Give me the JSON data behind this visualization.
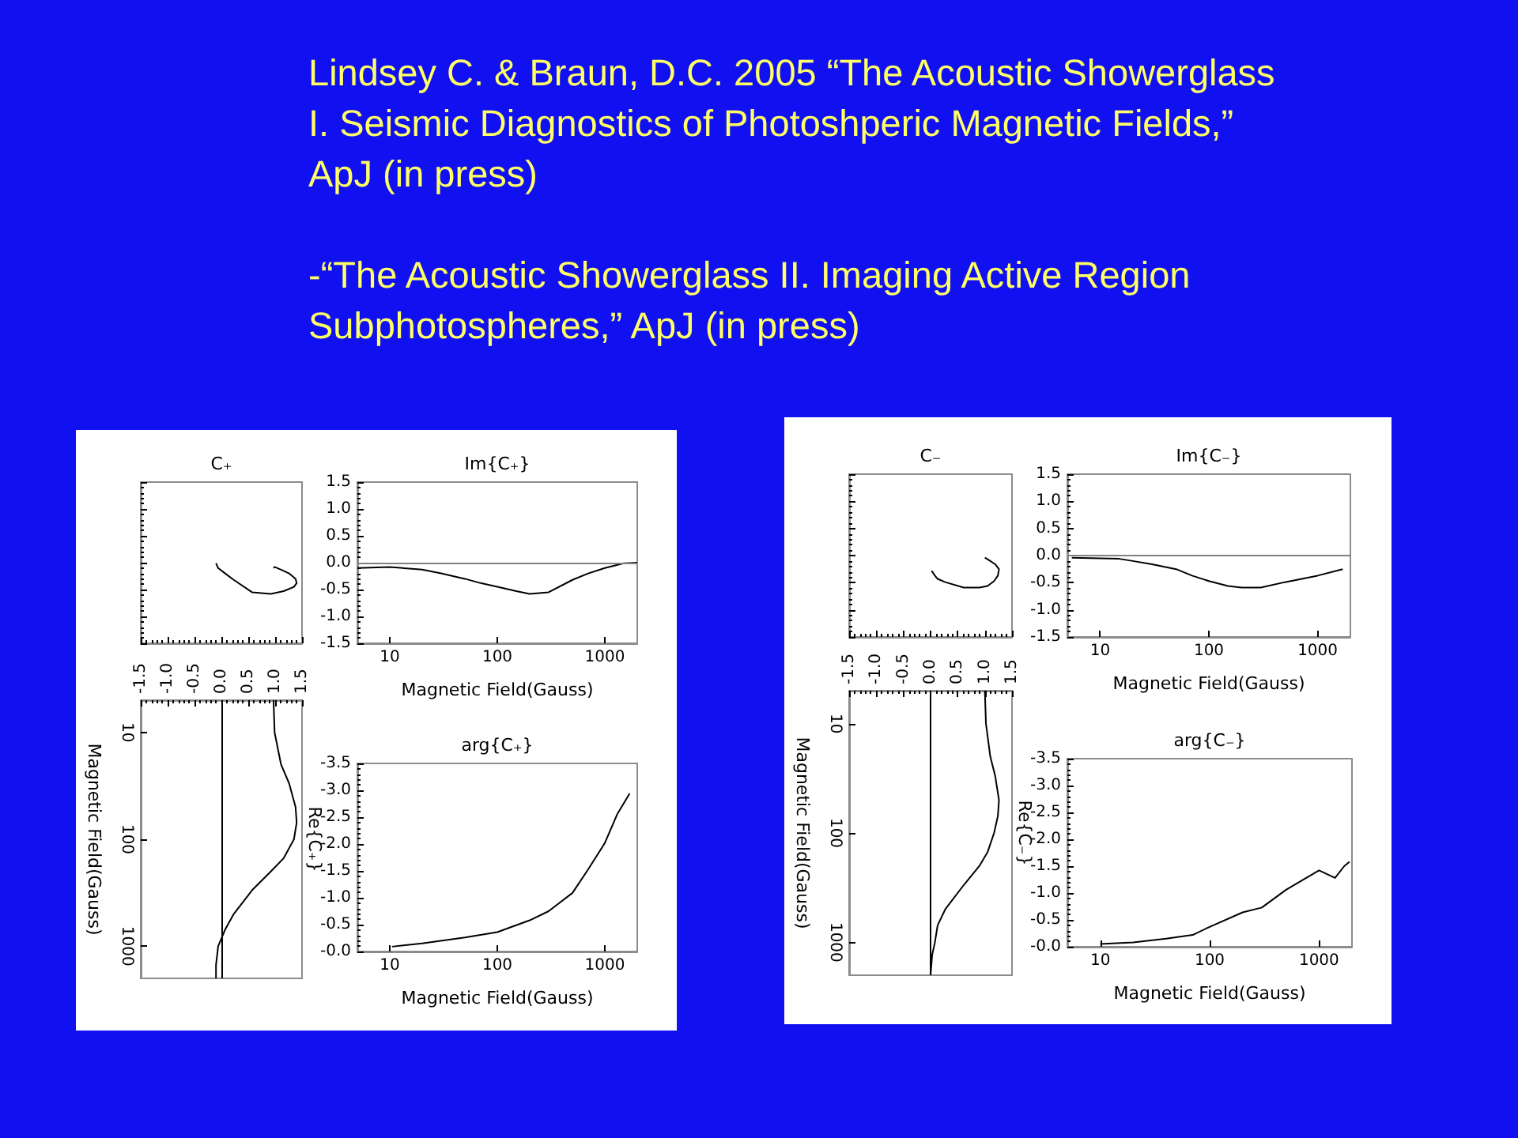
{
  "chart_data": [
    {
      "type": "other",
      "annotations": [
        "Lindsey C. & Braun, D.C. 2005  “The Acoustic Showerglass I. Seismic Diagnostics of Photoshperic Magnetic Fields,” ApJ (in press)",
        "-“The Acoustic Showerglass II. Imaging Active Region Subphotospheres,” ApJ (in press)"
      ]
    },
    {
      "type": "line",
      "title": "C₊",
      "color": "#000000",
      "tick_labels": false,
      "x": [
        0.97,
        0.99,
        1.11,
        1.26,
        1.38,
        1.4,
        1.35,
        1.16,
        0.92,
        0.57,
        0.23,
        0.07,
        -0.06,
        -0.1,
        -0.1
      ],
      "values": [
        -0.1,
        -0.08,
        -0.13,
        -0.2,
        -0.3,
        -0.38,
        -0.45,
        -0.53,
        -0.58,
        -0.55,
        -0.32,
        -0.2,
        -0.1,
        -0.01,
        0.0
      ],
      "xlim": [
        -1.5,
        1.5
      ],
      "ylim": [
        -1.5,
        1.5
      ],
      "xticks": [
        -1.5,
        -1,
        -0.5,
        0,
        0.5,
        1,
        1.5
      ],
      "yticks": [
        -1.5,
        -1,
        -0.5,
        0,
        0.5,
        1,
        1.5
      ]
    },
    {
      "type": "line",
      "title": "Im{C₊}",
      "xlabel": "Magnetic Field(Gauss)",
      "color": "#000000",
      "log": "x",
      "x": [
        5,
        10,
        20,
        30,
        50,
        70,
        100,
        150,
        200,
        300,
        500,
        700,
        1000,
        1500,
        2000
      ],
      "values": [
        -0.1,
        -0.08,
        -0.13,
        -0.2,
        -0.3,
        -0.38,
        -0.45,
        -0.53,
        -0.58,
        -0.55,
        -0.32,
        -0.2,
        -0.1,
        -0.01,
        0.0
      ],
      "xlim": [
        5,
        2000
      ],
      "xticks": [
        10,
        100,
        1000
      ],
      "ylim": [
        -1.5,
        1.5
      ],
      "yticks": [
        {
          "value": -1.5,
          "label": "-1.5"
        },
        {
          "value": -1,
          "label": "-1.0"
        },
        {
          "value": -0.5,
          "label": "-0.5"
        },
        {
          "value": 0,
          "label": "0.0"
        },
        {
          "value": 0.5,
          "label": "0.5"
        },
        {
          "value": 1,
          "label": "1.0"
        },
        {
          "value": 1.5,
          "label": "1.5"
        }
      ],
      "ref_lines": [
        {
          "axis": "y",
          "value": 0,
          "color": "#808080"
        }
      ]
    },
    {
      "type": "line",
      "title": "Re{C₊}",
      "ylabel": "Magnetic Field(Gauss)",
      "color": "#000000",
      "orientation": "horizontal",
      "log": "y",
      "x": [
        5,
        10,
        20,
        30,
        50,
        70,
        100,
        150,
        200,
        300,
        500,
        700,
        1000,
        1500,
        2000
      ],
      "values": [
        0.97,
        0.99,
        1.11,
        1.26,
        1.38,
        1.4,
        1.35,
        1.16,
        0.92,
        0.57,
        0.23,
        0.07,
        -0.06,
        -0.1,
        -0.1
      ],
      "ylim": [
        2000,
        5
      ],
      "yticks": [
        10,
        100,
        1000
      ],
      "xlim": [
        -1.5,
        1.5
      ],
      "xticks": [
        {
          "value": -1.5,
          "label": "-1.5"
        },
        {
          "value": -1,
          "label": "-1.0"
        },
        {
          "value": -0.5,
          "label": "-0.5"
        },
        {
          "value": 0,
          "label": "0.0"
        },
        {
          "value": 0.5,
          "label": "0.5"
        },
        {
          "value": 1,
          "label": "1.0"
        },
        {
          "value": 1.5,
          "label": "1.5"
        }
      ],
      "ref_lines": [
        {
          "axis": "x",
          "value": 0,
          "color": "#000000"
        }
      ]
    },
    {
      "type": "line",
      "title": "arg{C₊}",
      "xlabel": "Magnetic Field(Gauss)",
      "color": "#000000",
      "log": "x",
      "x": [
        10.5,
        20,
        50,
        100,
        200,
        300,
        500,
        700,
        1000,
        1300,
        1700
      ],
      "values": [
        -0.09,
        -0.15,
        -0.26,
        -0.36,
        -0.58,
        -0.75,
        -1.09,
        -1.53,
        -2.02,
        -2.55,
        -2.94
      ],
      "xlim": [
        5,
        2000
      ],
      "xticks": [
        10,
        100,
        1000
      ],
      "ylim": [
        0,
        -3.5
      ],
      "yticks": [
        {
          "value": 0,
          "label": "-0.0"
        },
        {
          "value": -0.5,
          "label": "-0.5"
        },
        {
          "value": -1,
          "label": "-1.0"
        },
        {
          "value": -1.5,
          "label": "-1.5"
        },
        {
          "value": -2,
          "label": "-2.0"
        },
        {
          "value": -2.5,
          "label": "-2.5"
        },
        {
          "value": -3,
          "label": "-3.0"
        },
        {
          "value": -3.5,
          "label": "-3.5"
        }
      ]
    },
    {
      "type": "line",
      "title": "C₋",
      "color": "#000000",
      "tick_labels": false,
      "x": [
        1.0,
        1.02,
        1.1,
        1.19,
        1.26,
        1.24,
        1.17,
        1.05,
        0.9,
        0.61,
        0.27,
        0.13,
        0.08,
        0.02
      ],
      "values": [
        -0.04,
        -0.05,
        -0.1,
        -0.16,
        -0.25,
        -0.37,
        -0.47,
        -0.56,
        -0.59,
        -0.59,
        -0.49,
        -0.43,
        -0.37,
        -0.28
      ],
      "xlim": [
        -1.5,
        1.5
      ],
      "ylim": [
        -1.5,
        1.5
      ],
      "xticks": [
        -1.5,
        -1,
        -0.5,
        0,
        0.5,
        1,
        1.5
      ],
      "yticks": [
        -1.5,
        -1,
        -0.5,
        0,
        0.5,
        1,
        1.5
      ]
    },
    {
      "type": "line",
      "title": "Im{C₋}",
      "xlabel": "Magnetic Field(Gauss)",
      "color": "#000000",
      "log": "x",
      "x": [
        5.5,
        10,
        15,
        20,
        30,
        50,
        70,
        100,
        150,
        200,
        300,
        500,
        1000,
        1700
      ],
      "values": [
        -0.04,
        -0.05,
        -0.06,
        -0.1,
        -0.16,
        -0.25,
        -0.37,
        -0.47,
        -0.56,
        -0.59,
        -0.59,
        -0.49,
        -0.37,
        -0.25
      ],
      "xlim": [
        5,
        2000
      ],
      "xticks": [
        10,
        100,
        1000
      ],
      "ylim": [
        -1.5,
        1.5
      ],
      "yticks": [
        {
          "value": -1.5,
          "label": "-1.5"
        },
        {
          "value": -1,
          "label": "-1.0"
        },
        {
          "value": -0.5,
          "label": "-0.5"
        },
        {
          "value": 0,
          "label": "0.0"
        },
        {
          "value": 0.5,
          "label": "0.5"
        },
        {
          "value": 1,
          "label": "1.0"
        },
        {
          "value": 1.5,
          "label": "1.5"
        }
      ],
      "ref_lines": [
        {
          "axis": "y",
          "value": 0,
          "color": "#808080"
        }
      ]
    },
    {
      "type": "line",
      "title": "Re{C₋}",
      "ylabel": "Magnetic Field(Gauss)",
      "color": "#000000",
      "orientation": "horizontal",
      "log": "y",
      "x": [
        5,
        10,
        20,
        30,
        50,
        70,
        100,
        150,
        200,
        300,
        500,
        700,
        1000,
        1300,
        2000
      ],
      "values": [
        1.0,
        1.02,
        1.1,
        1.19,
        1.26,
        1.24,
        1.17,
        1.05,
        0.9,
        0.61,
        0.27,
        0.13,
        0.08,
        0.03,
        0.0
      ],
      "ylim": [
        2000,
        5
      ],
      "yticks": [
        10,
        100,
        1000
      ],
      "xlim": [
        -1.5,
        1.5
      ],
      "xticks": [
        {
          "value": -1.5,
          "label": "-1.5"
        },
        {
          "value": -1,
          "label": "-1.0"
        },
        {
          "value": -0.5,
          "label": "-0.5"
        },
        {
          "value": 0,
          "label": "0.0"
        },
        {
          "value": 0.5,
          "label": "0.5"
        },
        {
          "value": 1,
          "label": "1.0"
        },
        {
          "value": 1.5,
          "label": "1.5"
        }
      ],
      "ref_lines": [
        {
          "axis": "x",
          "value": 0,
          "color": "#000000"
        }
      ]
    },
    {
      "type": "line",
      "title": "arg{C₋}",
      "xlabel": "Magnetic Field(Gauss)",
      "color": "#000000",
      "log": "x",
      "x": [
        10,
        20,
        40,
        70,
        100,
        200,
        300,
        500,
        1000,
        1400,
        1700,
        1900
      ],
      "values": [
        -0.05,
        -0.08,
        -0.15,
        -0.22,
        -0.37,
        -0.64,
        -0.73,
        -1.06,
        -1.42,
        -1.28,
        -1.5,
        -1.58
      ],
      "xlim": [
        5,
        2000
      ],
      "xticks": [
        10,
        100,
        1000
      ],
      "ylim": [
        0,
        -3.5
      ],
      "yticks": [
        {
          "value": 0,
          "label": "-0.0"
        },
        {
          "value": -0.5,
          "label": "-0.5"
        },
        {
          "value": -1,
          "label": "-1.0"
        },
        {
          "value": -1.5,
          "label": "-1.5"
        },
        {
          "value": -2,
          "label": "-2.0"
        },
        {
          "value": -2.5,
          "label": "-2.5"
        },
        {
          "value": -3,
          "label": "-3.0"
        },
        {
          "value": -3.5,
          "label": "-3.5"
        }
      ]
    }
  ]
}
